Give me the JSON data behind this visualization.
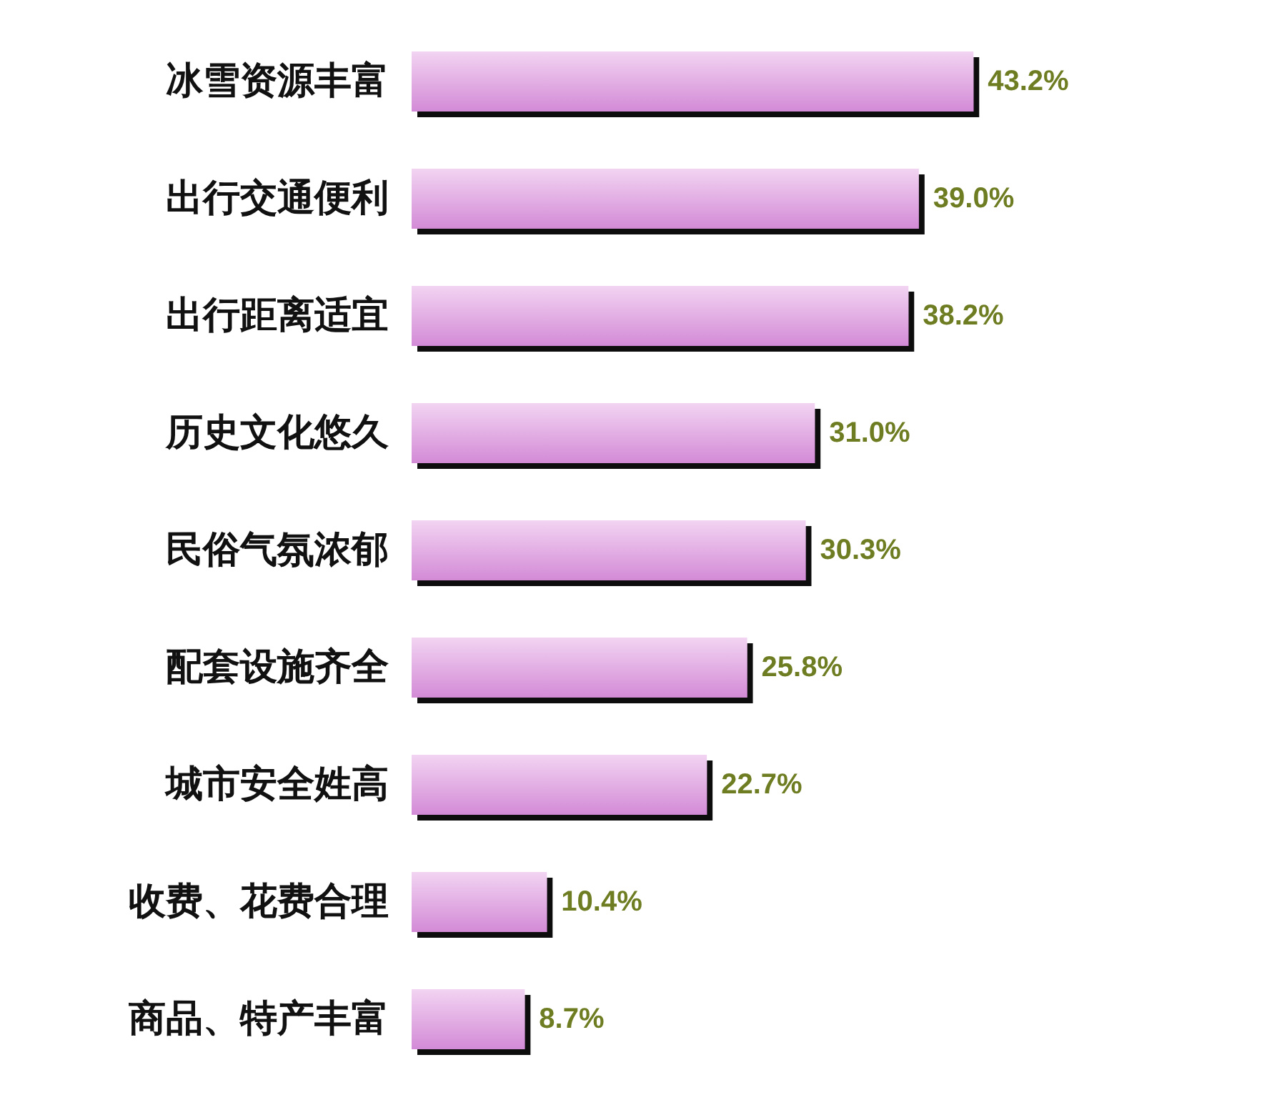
{
  "chart_data": {
    "type": "bar",
    "orientation": "horizontal",
    "categories": [
      "冰雪资源丰富",
      "出行交通便利",
      "出行距离适宜",
      "历史文化悠久",
      "民俗气氛浓郁",
      "配套设施齐全",
      "城市安全姓高",
      "收费、花费合理",
      "商品、特产丰富"
    ],
    "values": [
      43.2,
      39.0,
      38.2,
      31.0,
      30.3,
      25.8,
      22.7,
      10.4,
      8.7
    ],
    "value_labels": [
      "43.2%",
      "39.0%",
      "38.2%",
      "31.0%",
      "30.3%",
      "25.8%",
      "22.7%",
      "10.4%",
      "8.7%"
    ],
    "color": "#d38ad6"
  }
}
